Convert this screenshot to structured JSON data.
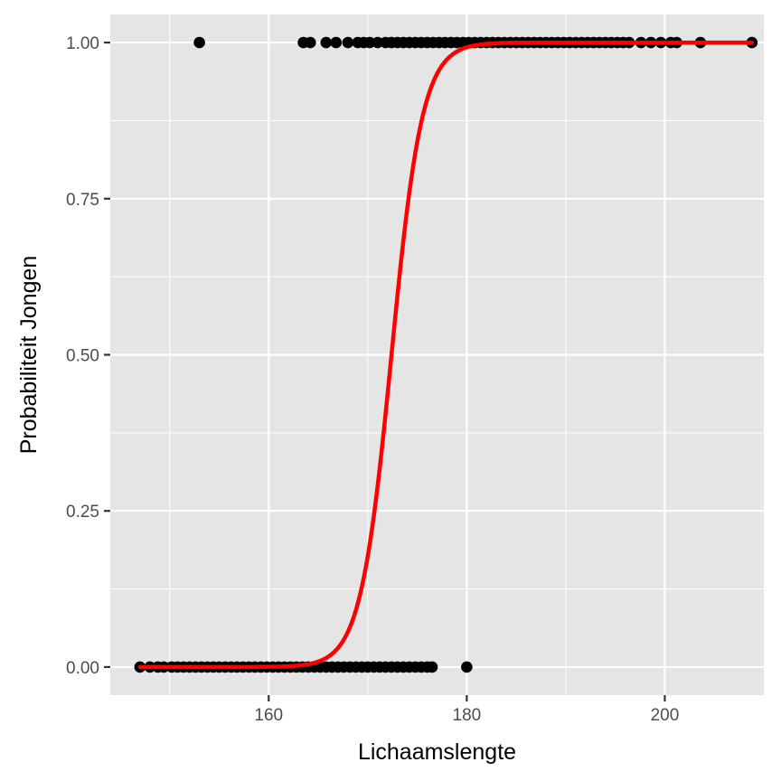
{
  "chart_data": {
    "type": "scatter",
    "title": "",
    "xlabel": "Lichaamslengte",
    "ylabel": "Probabiliteit Jongen",
    "xlim": [
      144,
      210
    ],
    "ylim": [
      -0.045,
      1.045
    ],
    "grid": true,
    "x_ticks": [
      {
        "value": 160,
        "label": "160"
      },
      {
        "value": 180,
        "label": "180"
      },
      {
        "value": 200,
        "label": "200"
      }
    ],
    "y_ticks": [
      {
        "value": 0,
        "label": "0.00"
      },
      {
        "value": 0.25,
        "label": "0.25"
      },
      {
        "value": 0.5,
        "label": "0.50"
      },
      {
        "value": 0.75,
        "label": "0.75"
      },
      {
        "value": 1,
        "label": "1.00"
      }
    ],
    "series": [
      {
        "kind": "points",
        "color": "#000000",
        "points": [
          {
            "x": 147.0,
            "y": 0
          },
          {
            "x": 148.0,
            "y": 0
          },
          {
            "x": 148.8,
            "y": 0
          },
          {
            "x": 149.4,
            "y": 0
          },
          {
            "x": 150.2,
            "y": 0
          },
          {
            "x": 150.8,
            "y": 0
          },
          {
            "x": 151.4,
            "y": 0
          },
          {
            "x": 152.0,
            "y": 0
          },
          {
            "x": 152.6,
            "y": 0
          },
          {
            "x": 153.2,
            "y": 0
          },
          {
            "x": 153.8,
            "y": 0
          },
          {
            "x": 154.4,
            "y": 0
          },
          {
            "x": 155.0,
            "y": 0
          },
          {
            "x": 155.6,
            "y": 0
          },
          {
            "x": 156.2,
            "y": 0
          },
          {
            "x": 156.8,
            "y": 0
          },
          {
            "x": 157.4,
            "y": 0
          },
          {
            "x": 158.0,
            "y": 0
          },
          {
            "x": 158.6,
            "y": 0
          },
          {
            "x": 159.2,
            "y": 0
          },
          {
            "x": 159.8,
            "y": 0
          },
          {
            "x": 160.4,
            "y": 0
          },
          {
            "x": 161.0,
            "y": 0
          },
          {
            "x": 161.6,
            "y": 0
          },
          {
            "x": 162.2,
            "y": 0
          },
          {
            "x": 162.8,
            "y": 0
          },
          {
            "x": 163.4,
            "y": 0
          },
          {
            "x": 164.0,
            "y": 0
          },
          {
            "x": 164.6,
            "y": 0
          },
          {
            "x": 165.2,
            "y": 0
          },
          {
            "x": 165.8,
            "y": 0
          },
          {
            "x": 166.4,
            "y": 0
          },
          {
            "x": 167.0,
            "y": 0
          },
          {
            "x": 167.6,
            "y": 0
          },
          {
            "x": 168.2,
            "y": 0
          },
          {
            "x": 168.8,
            "y": 0
          },
          {
            "x": 169.4,
            "y": 0
          },
          {
            "x": 170.0,
            "y": 0
          },
          {
            "x": 170.6,
            "y": 0
          },
          {
            "x": 171.2,
            "y": 0
          },
          {
            "x": 171.8,
            "y": 0
          },
          {
            "x": 172.4,
            "y": 0
          },
          {
            "x": 173.0,
            "y": 0
          },
          {
            "x": 173.6,
            "y": 0
          },
          {
            "x": 174.2,
            "y": 0
          },
          {
            "x": 174.8,
            "y": 0
          },
          {
            "x": 175.4,
            "y": 0
          },
          {
            "x": 176.0,
            "y": 0
          },
          {
            "x": 176.5,
            "y": 0
          },
          {
            "x": 180.0,
            "y": 0
          },
          {
            "x": 153.0,
            "y": 1
          },
          {
            "x": 163.5,
            "y": 1
          },
          {
            "x": 164.2,
            "y": 1
          },
          {
            "x": 165.8,
            "y": 1
          },
          {
            "x": 166.8,
            "y": 1
          },
          {
            "x": 168.0,
            "y": 1
          },
          {
            "x": 169.0,
            "y": 1
          },
          {
            "x": 169.6,
            "y": 1
          },
          {
            "x": 170.2,
            "y": 1
          },
          {
            "x": 171.0,
            "y": 1
          },
          {
            "x": 171.8,
            "y": 1
          },
          {
            "x": 172.4,
            "y": 1
          },
          {
            "x": 173.0,
            "y": 1
          },
          {
            "x": 173.6,
            "y": 1
          },
          {
            "x": 174.2,
            "y": 1
          },
          {
            "x": 174.8,
            "y": 1
          },
          {
            "x": 175.4,
            "y": 1
          },
          {
            "x": 176.0,
            "y": 1
          },
          {
            "x": 176.6,
            "y": 1
          },
          {
            "x": 177.2,
            "y": 1
          },
          {
            "x": 177.8,
            "y": 1
          },
          {
            "x": 178.4,
            "y": 1
          },
          {
            "x": 179.0,
            "y": 1
          },
          {
            "x": 179.6,
            "y": 1
          },
          {
            "x": 180.2,
            "y": 1
          },
          {
            "x": 180.8,
            "y": 1
          },
          {
            "x": 181.4,
            "y": 1
          },
          {
            "x": 182.0,
            "y": 1
          },
          {
            "x": 182.6,
            "y": 1
          },
          {
            "x": 183.2,
            "y": 1
          },
          {
            "x": 183.8,
            "y": 1
          },
          {
            "x": 184.4,
            "y": 1
          },
          {
            "x": 185.0,
            "y": 1
          },
          {
            "x": 185.6,
            "y": 1
          },
          {
            "x": 186.2,
            "y": 1
          },
          {
            "x": 186.8,
            "y": 1
          },
          {
            "x": 187.4,
            "y": 1
          },
          {
            "x": 188.0,
            "y": 1
          },
          {
            "x": 188.6,
            "y": 1
          },
          {
            "x": 189.2,
            "y": 1
          },
          {
            "x": 189.8,
            "y": 1
          },
          {
            "x": 190.4,
            "y": 1
          },
          {
            "x": 191.0,
            "y": 1
          },
          {
            "x": 191.6,
            "y": 1
          },
          {
            "x": 192.2,
            "y": 1
          },
          {
            "x": 192.8,
            "y": 1
          },
          {
            "x": 193.4,
            "y": 1
          },
          {
            "x": 194.0,
            "y": 1
          },
          {
            "x": 194.6,
            "y": 1
          },
          {
            "x": 195.2,
            "y": 1
          },
          {
            "x": 195.8,
            "y": 1
          },
          {
            "x": 196.4,
            "y": 1
          },
          {
            "x": 197.6,
            "y": 1
          },
          {
            "x": 198.6,
            "y": 1
          },
          {
            "x": 199.6,
            "y": 1
          },
          {
            "x": 200.6,
            "y": 1
          },
          {
            "x": 201.2,
            "y": 1
          },
          {
            "x": 203.6,
            "y": 1
          },
          {
            "x": 208.8,
            "y": 1
          }
        ]
      },
      {
        "kind": "logistic_fit",
        "color": "#ff0000",
        "x_range": [
          147.0,
          208.8
        ],
        "midpoint": 172.4,
        "slope": 0.64
      }
    ]
  }
}
